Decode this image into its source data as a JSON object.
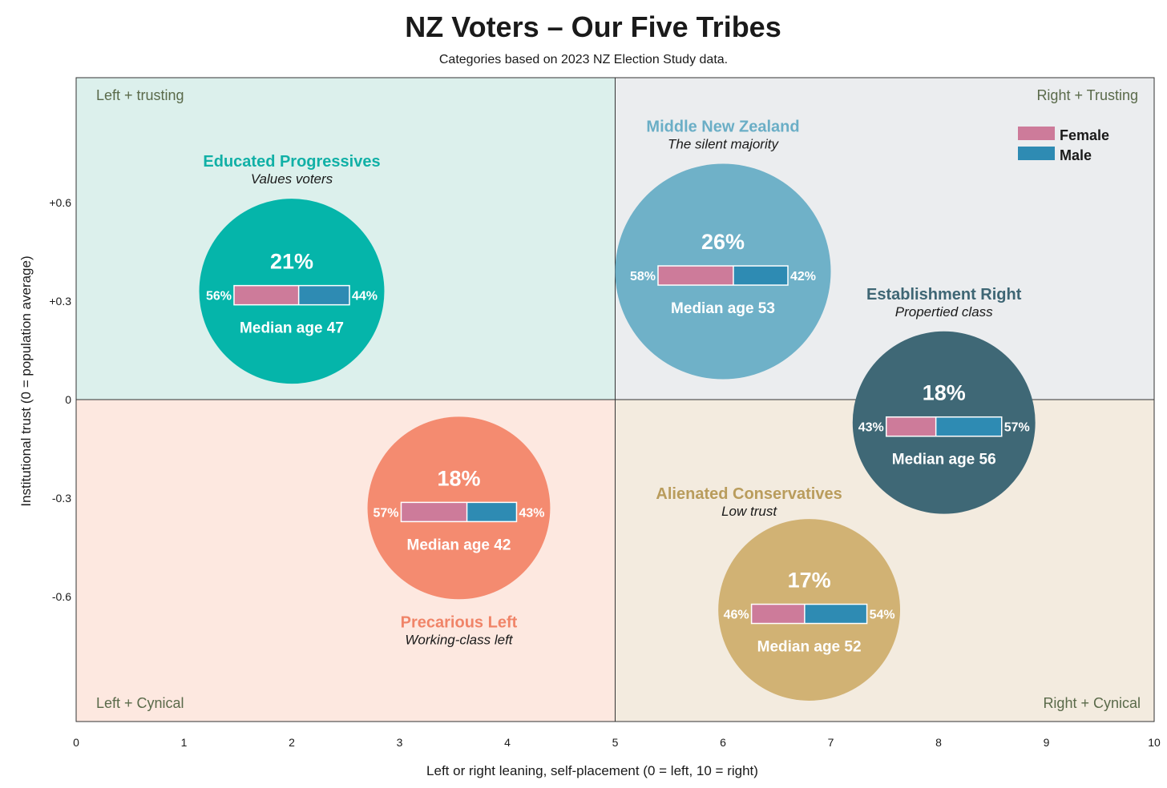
{
  "title": "NZ Voters – Our Five Tribes",
  "subtitle": "Categories based on 2023 NZ Election Study data.",
  "legend": {
    "female": "Female",
    "male": "Male"
  },
  "colors": {
    "female": "#cd7b9a",
    "male": "#2e8bb3",
    "quad_tl": "#dcf0ec",
    "quad_tr": "#ebedef",
    "quad_bl": "#fde8e0",
    "quad_br": "#f3ebdf"
  },
  "chart_data": {
    "type": "scatter",
    "xlabel": "Left or right leaning, self-placement (0 = left, 10 = right)",
    "ylabel": "Institutional trust (0 = population average)",
    "xlim": [
      0,
      10
    ],
    "ylim": [
      -0.98,
      0.98
    ],
    "x_ticks": [
      {
        "v": 0,
        "label": "0"
      },
      {
        "v": 1,
        "label": "1"
      },
      {
        "v": 2,
        "label": "2"
      },
      {
        "v": 3,
        "label": "3"
      },
      {
        "v": 4,
        "label": "4"
      },
      {
        "v": 5,
        "label": "5"
      },
      {
        "v": 6,
        "label": "6"
      },
      {
        "v": 7,
        "label": "7"
      },
      {
        "v": 8,
        "label": "8"
      },
      {
        "v": 9,
        "label": "9"
      },
      {
        "v": 10,
        "label": "10"
      }
    ],
    "y_ticks": [
      {
        "v": 0.6,
        "label": "+0.6"
      },
      {
        "v": 0.3,
        "label": "+0.3"
      },
      {
        "v": 0,
        "label": "0"
      },
      {
        "v": -0.3,
        "label": "-0.3"
      },
      {
        "v": -0.6,
        "label": "-0.6"
      }
    ],
    "quadrants": {
      "top_left": "Left + trusting",
      "top_right": "Right + Trusting",
      "bottom_left": "Left + Cynical",
      "bottom_right": "Right + Cynical"
    },
    "series": [
      {
        "name": "Educated Progressives",
        "subtitle": "Values voters",
        "x": 2.0,
        "y": 0.33,
        "share": "21%",
        "share_value": 21,
        "female": "56%",
        "female_value": 56,
        "male": "44%",
        "male_value": 44,
        "median_age": "Median age 47",
        "color": "#05b5aa",
        "name_color": "#11b0a6",
        "label_pos": "above"
      },
      {
        "name": "Middle New Zealand",
        "subtitle": "The silent majority",
        "x": 6.0,
        "y": 0.39,
        "share": "26%",
        "share_value": 26,
        "female": "58%",
        "female_value": 58,
        "male": "42%",
        "male_value": 42,
        "median_age": "Median age 53",
        "color": "#6fb1c8",
        "name_color": "#6aaec6",
        "label_pos": "above"
      },
      {
        "name": "Establishment Right",
        "subtitle": "Propertied class",
        "x": 8.05,
        "y": -0.07,
        "share": "18%",
        "share_value": 18,
        "female": "43%",
        "female_value": 43,
        "male": "57%",
        "male_value": 57,
        "median_age": "Median age 56",
        "color": "#3f6876",
        "name_color": "#3e6674",
        "label_pos": "above"
      },
      {
        "name": "Precarious Left",
        "subtitle": "Working-class left",
        "x": 3.55,
        "y": -0.33,
        "share": "18%",
        "share_value": 18,
        "female": "57%",
        "female_value": 57,
        "male": "43%",
        "male_value": 43,
        "median_age": "Median age 42",
        "color": "#f48b70",
        "name_color": "#f08468",
        "label_pos": "below"
      },
      {
        "name": "Alienated Conservatives",
        "subtitle": "Low trust",
        "x": 6.8,
        "y": -0.64,
        "share": "17%",
        "share_value": 17,
        "female": "46%",
        "female_value": 46,
        "male": "54%",
        "male_value": 54,
        "median_age": "Median age 52",
        "color": "#d1b274",
        "name_color": "#b99c5c",
        "label_pos": "above-left"
      }
    ]
  }
}
